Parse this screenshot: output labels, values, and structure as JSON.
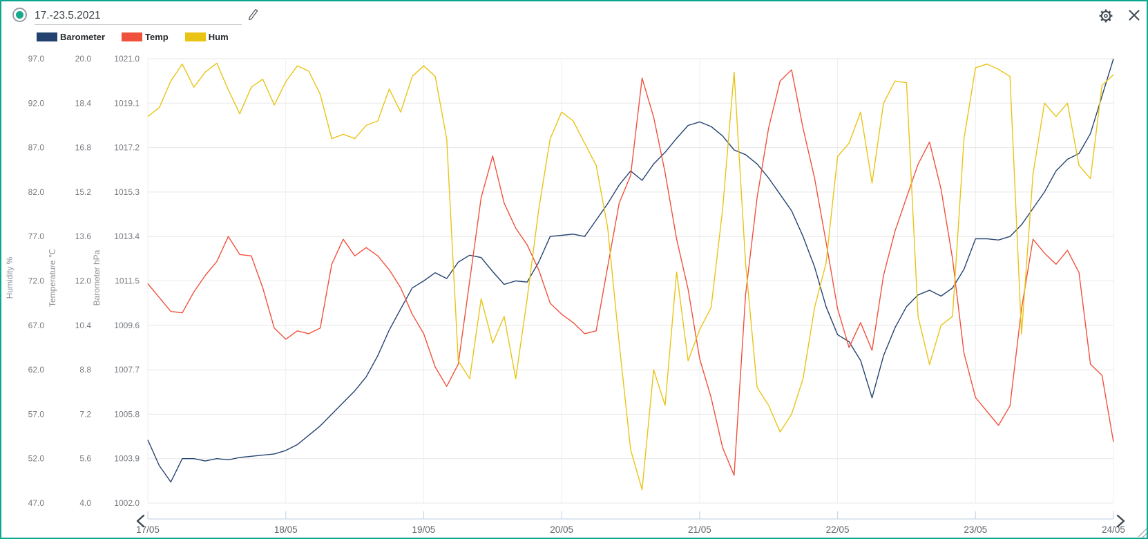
{
  "window": {
    "border_color": "#0CA78F",
    "icons": {
      "record": "radio-selected",
      "edit": "pencil",
      "settings": "gear",
      "close": "x",
      "scroll_left": "chevron-left",
      "scroll_right": "chevron-right",
      "resize": "diagonal-grip"
    }
  },
  "header": {
    "title": "17.-23.5.2021"
  },
  "chart_data": {
    "type": "line",
    "x_unit": "hours_from_17_05_0000",
    "x_range": [
      0,
      168
    ],
    "x_tick_hours": [
      0,
      24,
      48,
      72,
      96,
      120,
      144,
      168
    ],
    "x_tick_labels": [
      "17/05",
      "18/05",
      "19/05",
      "20/05",
      "21/05",
      "22/05",
      "23/05",
      "24/05"
    ],
    "grid": true,
    "legend_position": "top-left",
    "axes": [
      {
        "id": "humidity",
        "title": "Humidity %",
        "range": [
          47,
          97
        ],
        "tick_labels": [
          "97.0",
          "92.0",
          "87.0",
          "82.0",
          "77.0",
          "72.0",
          "67.0",
          "62.0",
          "57.0",
          "52.0",
          "47.0"
        ]
      },
      {
        "id": "temperature",
        "title": "Temperature ℃",
        "range": [
          4,
          20
        ],
        "tick_labels": [
          "20.0",
          "18.4",
          "16.8",
          "15.2",
          "13.6",
          "12.0",
          "10.4",
          "8.8",
          "7.2",
          "5.6",
          "4.0"
        ]
      },
      {
        "id": "barometer",
        "title": "Barometer hPa",
        "range": [
          1002,
          1021
        ],
        "tick_labels": [
          "1021.0",
          "1019.1",
          "1017.2",
          "1015.3",
          "1013.4",
          "1011.5",
          "1009.6",
          "1007.7",
          "1005.8",
          "1003.9",
          "1002.0"
        ]
      }
    ],
    "series": [
      {
        "name": "Barometer",
        "axis": "barometer",
        "unit": "hPa",
        "color": "#24426F",
        "x_start": 0,
        "x_step_hours": 2,
        "values": [
          1004.7,
          1003.6,
          1002.9,
          1003.9,
          1003.9,
          1003.8,
          1003.9,
          1003.85,
          1003.95,
          1004.0,
          1004.05,
          1004.1,
          1004.25,
          1004.5,
          1004.9,
          1005.3,
          1005.8,
          1006.3,
          1006.8,
          1007.4,
          1008.3,
          1009.4,
          1010.3,
          1011.2,
          1011.5,
          1011.85,
          1011.6,
          1012.3,
          1012.6,
          1012.5,
          1011.9,
          1011.35,
          1011.5,
          1011.45,
          1012.3,
          1013.4,
          1013.45,
          1013.5,
          1013.4,
          1014.1,
          1014.8,
          1015.6,
          1016.2,
          1015.8,
          1016.5,
          1017.0,
          1017.6,
          1018.15,
          1018.3,
          1018.1,
          1017.7,
          1017.1,
          1016.9,
          1016.5,
          1015.9,
          1015.2,
          1014.5,
          1013.4,
          1012.1,
          1010.4,
          1009.2,
          1008.9,
          1008.1,
          1006.5,
          1008.3,
          1009.5,
          1010.4,
          1010.9,
          1011.1,
          1010.85,
          1011.2,
          1012.0,
          1013.3,
          1013.3,
          1013.25,
          1013.4,
          1013.9,
          1014.6,
          1015.3,
          1016.2,
          1016.7,
          1016.95,
          1017.8,
          1019.4,
          1021.0
        ]
      },
      {
        "name": "Temp",
        "axis": "temperature",
        "unit": "°C",
        "color": "#F0513C",
        "x_start": 0,
        "x_step_hours": 2,
        "values": [
          11.9,
          11.4,
          10.9,
          10.85,
          11.6,
          12.2,
          12.7,
          13.6,
          12.95,
          12.9,
          11.75,
          10.3,
          9.9,
          10.2,
          10.1,
          10.3,
          12.6,
          13.5,
          12.9,
          13.2,
          12.9,
          12.4,
          11.75,
          10.8,
          10.1,
          8.9,
          8.2,
          9.0,
          12.0,
          15.0,
          16.5,
          14.8,
          13.9,
          13.3,
          12.4,
          11.2,
          10.8,
          10.5,
          10.1,
          10.2,
          12.5,
          14.8,
          15.8,
          19.3,
          17.9,
          15.9,
          13.5,
          11.7,
          9.2,
          7.8,
          6.0,
          5.0,
          11.5,
          15.0,
          17.5,
          19.2,
          19.6,
          17.5,
          15.7,
          13.4,
          11.0,
          9.6,
          10.5,
          9.5,
          12.2,
          13.8,
          15.0,
          16.2,
          17.0,
          15.3,
          12.8,
          9.4,
          7.8,
          7.3,
          6.8,
          7.5,
          11.0,
          13.5,
          13.0,
          12.6,
          13.1,
          12.3,
          9.0,
          8.6,
          6.2
        ]
      },
      {
        "name": "Hum",
        "axis": "humidity",
        "unit": "%",
        "color": "#E9C414",
        "x_start": 0,
        "x_step_hours": 2,
        "values": [
          90.5,
          91.5,
          94.5,
          96.4,
          93.8,
          95.5,
          96.5,
          93.5,
          90.8,
          93.8,
          94.7,
          91.8,
          94.4,
          96.2,
          95.6,
          93.0,
          88.0,
          88.5,
          88.0,
          89.5,
          90.0,
          93.6,
          91.0,
          95.0,
          96.2,
          95.0,
          88.0,
          63.0,
          61.0,
          70.0,
          65.0,
          68.0,
          61.0,
          70.0,
          80.0,
          88.0,
          91.0,
          90.0,
          87.5,
          85.0,
          78.0,
          65.0,
          53.0,
          48.5,
          62.0,
          58.0,
          73.0,
          63.0,
          66.5,
          69.0,
          80.0,
          95.5,
          74.0,
          60.0,
          58.0,
          55.0,
          57.0,
          61.0,
          69.0,
          74.0,
          86.0,
          87.5,
          91.0,
          83.0,
          92.0,
          94.5,
          94.3,
          68.0,
          62.6,
          67.0,
          68.0,
          88.0,
          96.0,
          96.4,
          95.8,
          95.0,
          66.0,
          84.0,
          92.0,
          90.5,
          92.0,
          85.0,
          83.5,
          94.0,
          95.2
        ]
      }
    ]
  },
  "colors": {
    "grid_horizontal": "#E7E7E7",
    "grid_vertical": "#EFEFEF",
    "axis_tick_text": "#75797E",
    "axis_title_text": "#8A8F94",
    "date_text": "#5F6368",
    "bottom_axis_line": "#C9D7E8",
    "icon": "#3D4852"
  }
}
